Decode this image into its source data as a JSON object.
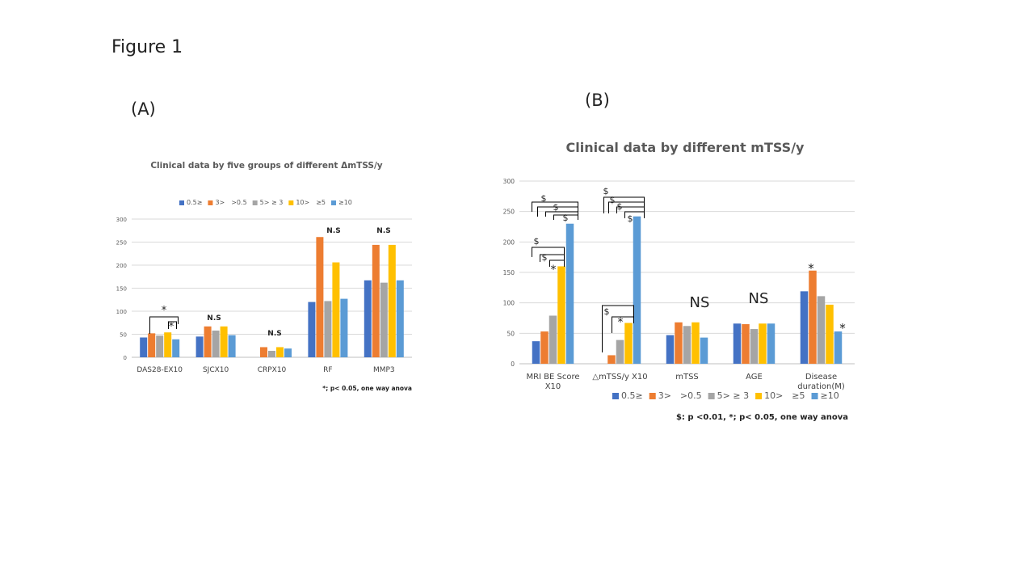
{
  "figure_title": "Figure 1",
  "panels": [
    "(A)",
    "(B)"
  ],
  "colors": [
    "#4472C4",
    "#ED7D31",
    "#A5A5A5",
    "#FFC000",
    "#5B9BD5"
  ],
  "chart_data": [
    {
      "type": "bar",
      "title": "Clinical data by five groups of different  ΔmTSS/y",
      "categories": [
        "DAS28-EX10",
        "SJCX10",
        "CRPX10",
        "RF",
        "MMP3"
      ],
      "legend": [
        "0.5≥",
        "3>　>0.5",
        "5> ≥ 3",
        "10>　≥5",
        "≥10"
      ],
      "ylim": [
        0,
        300
      ],
      "yticks": [
        "0",
        "50",
        "100",
        "150",
        "200",
        "250",
        "300"
      ],
      "series": [
        {
          "name": "0.5≥",
          "values": [
            43,
            45,
            0,
            120,
            167
          ]
        },
        {
          "name": "3>　>0.5",
          "values": [
            52,
            67,
            22,
            261,
            244
          ]
        },
        {
          "name": "5> ≥ 3",
          "values": [
            47,
            58,
            14,
            122,
            162
          ]
        },
        {
          "name": "10>　≥5",
          "values": [
            54,
            67,
            22,
            206,
            244
          ]
        },
        {
          "name": "≥10",
          "values": [
            39,
            48,
            19,
            127,
            167
          ]
        }
      ],
      "annotations": [
        "*",
        "*",
        "N.S",
        "N.S",
        "N.S",
        "N.S"
      ],
      "footnote": "*; p< 0.05,  one way anova"
    },
    {
      "type": "bar",
      "title": "Clinical data by different  mTSS/y",
      "categories": [
        "MRI BE Score X10",
        "△mTSS/y X10",
        "mTSS",
        "AGE",
        "Disease duration(M)"
      ],
      "category_lines": [
        [
          "MRI BE Score",
          "X10"
        ],
        [
          "△mTSS/y X10"
        ],
        [
          "mTSS"
        ],
        [
          "AGE"
        ],
        [
          "Disease",
          "duration(M)"
        ]
      ],
      "legend": [
        "0.5≥",
        "3>　>0.5",
        "5> ≥ 3",
        "10>　≥5",
        "≥10"
      ],
      "ylim": [
        0,
        300
      ],
      "yticks": [
        "0",
        "50",
        "100",
        "150",
        "200",
        "250",
        "300"
      ],
      "series": [
        {
          "name": "0.5≥",
          "values": [
            37,
            0,
            47,
            66,
            119
          ]
        },
        {
          "name": "3>　>0.5",
          "values": [
            53,
            14,
            68,
            65,
            153
          ]
        },
        {
          "name": "5> ≥ 3",
          "values": [
            79,
            39,
            62,
            57,
            111
          ]
        },
        {
          "name": "10>　≥5",
          "values": [
            160,
            67,
            68,
            66,
            97
          ]
        },
        {
          "name": "≥10",
          "values": [
            230,
            242,
            43,
            66,
            53
          ]
        }
      ],
      "annotations": [
        "$",
        "$",
        "$",
        "$",
        "$",
        "$",
        "*",
        "$",
        "$",
        "$",
        "$",
        "$",
        "*",
        "NS",
        "NS",
        "*",
        "*"
      ],
      "footnote": "$: p <0.01,  *; p< 0.05,  one way anova"
    }
  ]
}
